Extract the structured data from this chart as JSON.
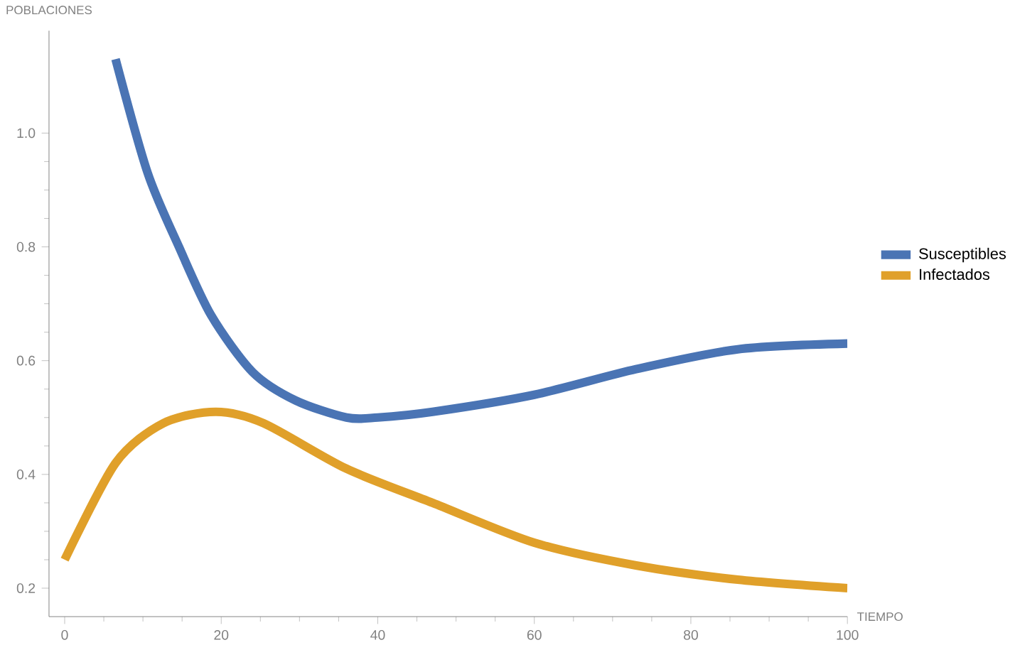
{
  "chart_data": {
    "type": "line",
    "xlabel": "TIEMPO",
    "ylabel": "POBLACIONES",
    "xlim": [
      -2,
      100
    ],
    "ylim": [
      0.15,
      1.18
    ],
    "xticks": [
      0,
      20,
      40,
      60,
      80,
      100
    ],
    "yticks": [
      0.2,
      0.4,
      0.6,
      0.8,
      {
        "value": 1.0,
        "label": "1.0"
      }
    ],
    "grid": false,
    "legend": "right",
    "line_style": "solid",
    "series": [
      {
        "name": "Susceptibles",
        "color": "#4a74b4",
        "x": [
          6.5,
          10.6,
          14.6,
          18.7,
          24,
          29.5,
          36,
          40,
          47,
          60,
          73,
          86,
          100
        ],
        "values": [
          1.13,
          0.93,
          0.8,
          0.68,
          0.58,
          0.53,
          0.5,
          0.5,
          0.51,
          0.54,
          0.585,
          0.62,
          0.63
        ]
      },
      {
        "name": "Infectados",
        "color": "#e0a02a",
        "x": [
          0,
          6.5,
          12.6,
          19.3,
          25.4,
          36,
          47,
          60,
          73,
          86,
          100
        ],
        "values": [
          0.25,
          0.42,
          0.49,
          0.51,
          0.49,
          0.41,
          0.35,
          0.28,
          0.24,
          0.215,
          0.2
        ]
      }
    ]
  }
}
